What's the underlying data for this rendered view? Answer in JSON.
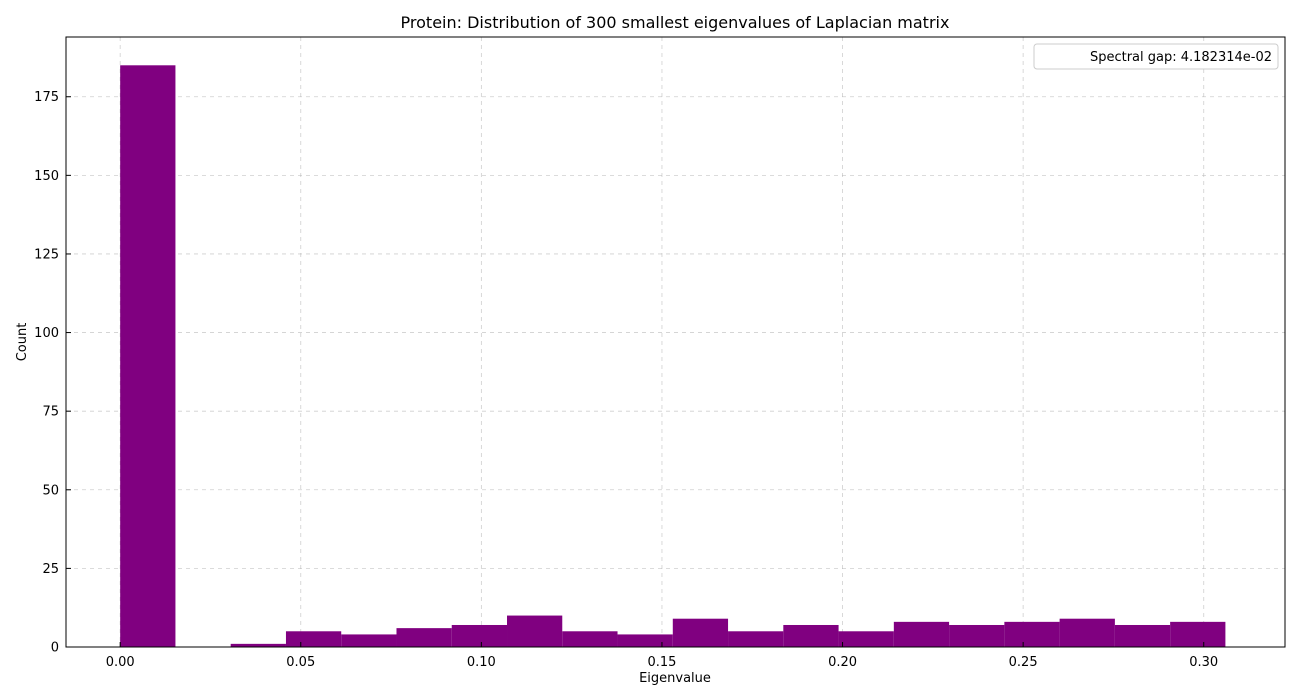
{
  "chart_data": {
    "type": "bar",
    "title": "Protein: Distribution of 300 smallest eigenvalues of Laplacian matrix",
    "xlabel": "Eigenvalue",
    "ylabel": "Count",
    "xlim": [
      -0.015,
      0.3225
    ],
    "ylim": [
      0,
      194
    ],
    "xticks": [
      0.0,
      0.05,
      0.1,
      0.15,
      0.2,
      0.25,
      0.3
    ],
    "xtick_labels": [
      "0.00",
      "0.05",
      "0.10",
      "0.15",
      "0.20",
      "0.25",
      "0.30"
    ],
    "yticks": [
      0,
      25,
      50,
      75,
      100,
      125,
      150,
      175
    ],
    "ytick_labels": [
      "0",
      "25",
      "50",
      "75",
      "100",
      "125",
      "150",
      "175"
    ],
    "grid": true,
    "bar_color": "#800080",
    "bins": [
      {
        "x0": 0.0,
        "x1": 0.0153,
        "count": 185
      },
      {
        "x0": 0.0153,
        "x1": 0.0306,
        "count": 0
      },
      {
        "x0": 0.0306,
        "x1": 0.0459,
        "count": 1
      },
      {
        "x0": 0.0459,
        "x1": 0.0612,
        "count": 5
      },
      {
        "x0": 0.0612,
        "x1": 0.0765,
        "count": 4
      },
      {
        "x0": 0.0765,
        "x1": 0.0918,
        "count": 6
      },
      {
        "x0": 0.0918,
        "x1": 0.1071,
        "count": 7
      },
      {
        "x0": 0.1071,
        "x1": 0.1224,
        "count": 10
      },
      {
        "x0": 0.1224,
        "x1": 0.1377,
        "count": 5
      },
      {
        "x0": 0.1377,
        "x1": 0.153,
        "count": 4
      },
      {
        "x0": 0.153,
        "x1": 0.1683,
        "count": 9
      },
      {
        "x0": 0.1683,
        "x1": 0.1836,
        "count": 5
      },
      {
        "x0": 0.1836,
        "x1": 0.1989,
        "count": 7
      },
      {
        "x0": 0.1989,
        "x1": 0.2142,
        "count": 5
      },
      {
        "x0": 0.2142,
        "x1": 0.2295,
        "count": 8
      },
      {
        "x0": 0.2295,
        "x1": 0.2448,
        "count": 7
      },
      {
        "x0": 0.2448,
        "x1": 0.2601,
        "count": 8
      },
      {
        "x0": 0.2601,
        "x1": 0.2754,
        "count": 9
      },
      {
        "x0": 0.2754,
        "x1": 0.2907,
        "count": 7
      },
      {
        "x0": 0.2907,
        "x1": 0.306,
        "count": 8
      }
    ],
    "legend": {
      "position": "top-right",
      "entries": [
        "Spectral gap: 4.182314e-02"
      ]
    }
  }
}
